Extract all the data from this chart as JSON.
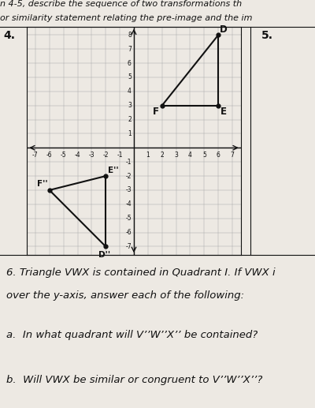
{
  "title_lines": [
    "n 4-5, describe the sequence of two transformations th",
    "or similarity statement relating the pre-image and the im"
  ],
  "section4_label": "4.",
  "section5_label": "5.",
  "triangle_DEF": {
    "D": [
      6,
      8
    ],
    "E": [
      6,
      3
    ],
    "F": [
      2,
      3
    ]
  },
  "triangle_D2E2F2": {
    "D2": [
      -2,
      -7
    ],
    "E2": [
      -2,
      -2
    ],
    "F2": [
      -6,
      -3
    ]
  },
  "bg_color": "#ede9e3",
  "grid_color": "#aaaaaa",
  "line_color": "#111111",
  "text_color": "#111111",
  "section6_lines": [
    "6. Triangle VWX is contained in Quadrant I. If VWX i",
    "over the y-axis, answer each of the following:",
    "a.  In what quadrant will V’’W’’X’’ be contained?",
    "b.  Will VWX be similar or congruent to V’’W’’X’’?"
  ],
  "grid_xlim": [
    -7.6,
    7.6
  ],
  "grid_ylim": [
    -7.6,
    8.6
  ],
  "tick_fontsize": 5.5,
  "label_fontsize": 8.5,
  "label2_fontsize": 7.5
}
